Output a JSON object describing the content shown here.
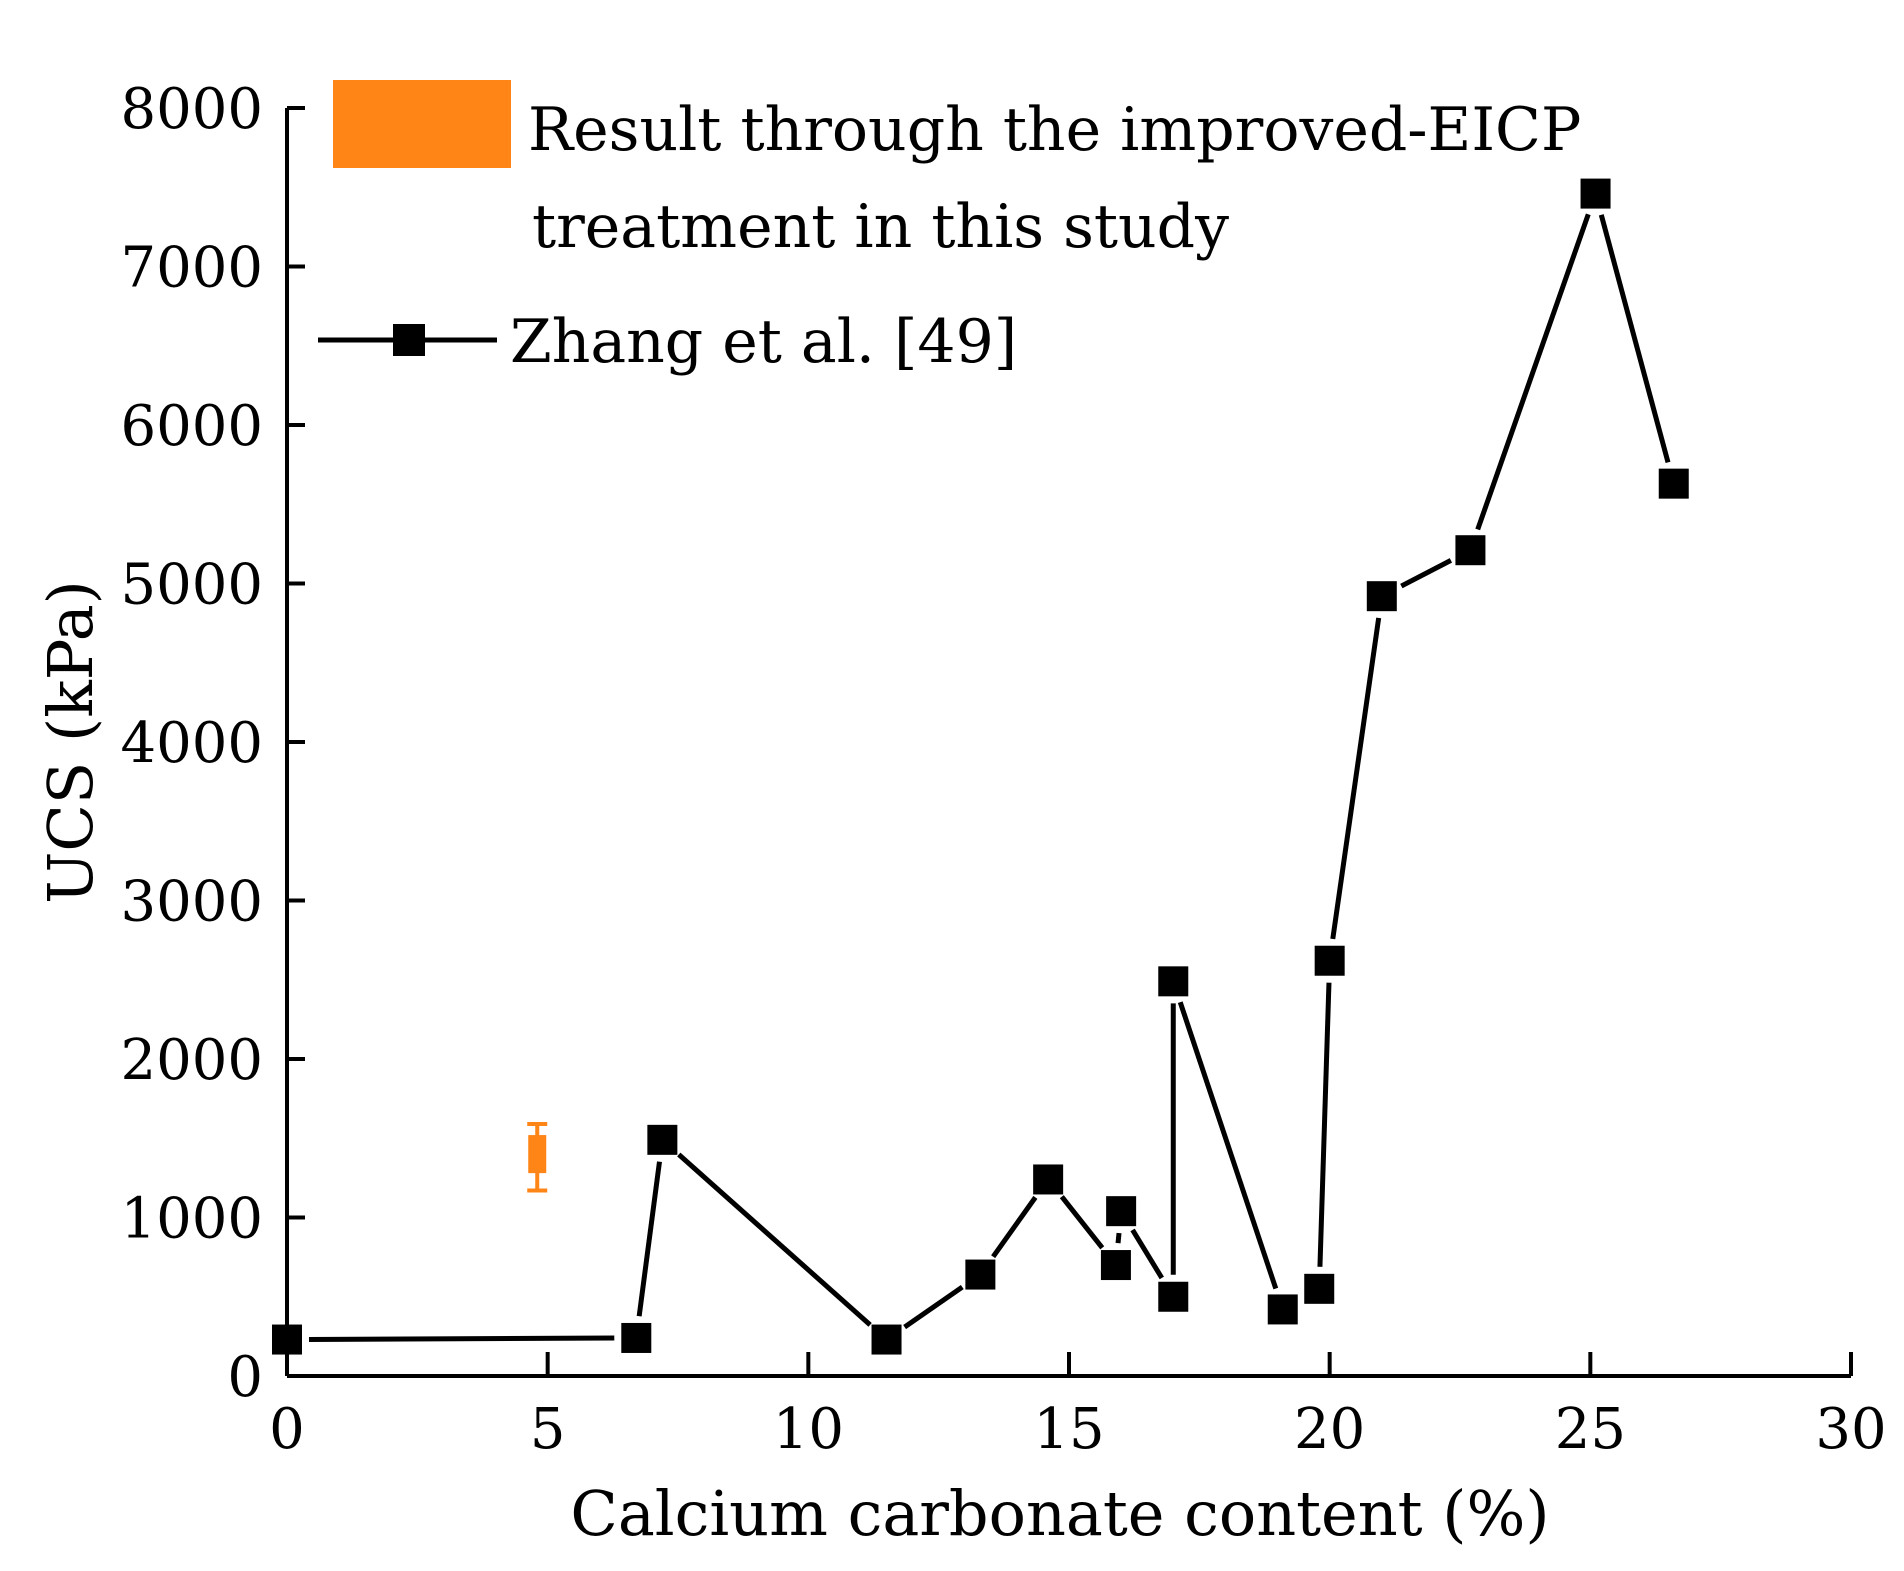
{
  "chart_data": {
    "type": "scatter",
    "title": "",
    "xlabel": "Calcium carbonate content (%)",
    "ylabel": "UCS (kPa)",
    "xlim": [
      0,
      30
    ],
    "ylim": [
      0,
      8000
    ],
    "xticks": [
      0,
      5,
      10,
      15,
      20,
      25,
      30
    ],
    "yticks": [
      0,
      1000,
      2000,
      3000,
      4000,
      5000,
      6000,
      7000,
      8000
    ],
    "grid": false,
    "legend_position": "top-left",
    "series": [
      {
        "name": "Zhang et al. [49]",
        "marker": "square",
        "line": true,
        "color": "#000000",
        "x": [
          0.0,
          6.7,
          7.2,
          11.5,
          13.3,
          14.6,
          15.9,
          16.0,
          17.0,
          17.0,
          19.1,
          19.8,
          20.0,
          21.0,
          22.7,
          25.1,
          26.6
        ],
        "y": [
          230,
          240,
          1490,
          230,
          640,
          1240,
          700,
          1040,
          500,
          2490,
          420,
          550,
          2620,
          4920,
          5210,
          7460,
          5630
        ]
      },
      {
        "name": "Result through the improved-EICP treatment in this study",
        "legend_lines": [
          "Result through the improved-EICP",
          "treatment in this study"
        ],
        "marker": "bar",
        "color": "#FF8517",
        "x": [
          4.8
        ],
        "y": [
          1380
        ],
        "y_low": [
          1280
        ],
        "y_high": [
          1520
        ],
        "err_low": [
          1170
        ],
        "err_high": [
          1590
        ]
      }
    ]
  }
}
